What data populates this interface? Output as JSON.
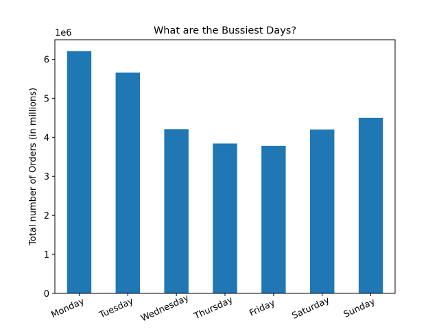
{
  "chart_data": {
    "type": "bar",
    "title": "What are the Bussiest Days?",
    "xlabel": "",
    "ylabel": "Total number of Orders (in millions)",
    "offset_label": "1e6",
    "categories": [
      "Monday",
      "Tuesday",
      "Wednesday",
      "Thursday",
      "Friday",
      "Saturday",
      "Sunday"
    ],
    "values": [
      6210000,
      5660000,
      4210000,
      3840000,
      3780000,
      4200000,
      4500000
    ],
    "ylim": [
      0,
      6500000
    ],
    "yticks": [
      0,
      1000000,
      2000000,
      3000000,
      4000000,
      5000000,
      6000000
    ],
    "ytick_labels": [
      "0",
      "1",
      "2",
      "3",
      "4",
      "5",
      "6"
    ],
    "x_tick_rotation_deg": 25,
    "grid": false,
    "legend": "none",
    "colors": {
      "bar": "#1f77b4",
      "axes": "#000000",
      "background": "#ffffff"
    }
  }
}
